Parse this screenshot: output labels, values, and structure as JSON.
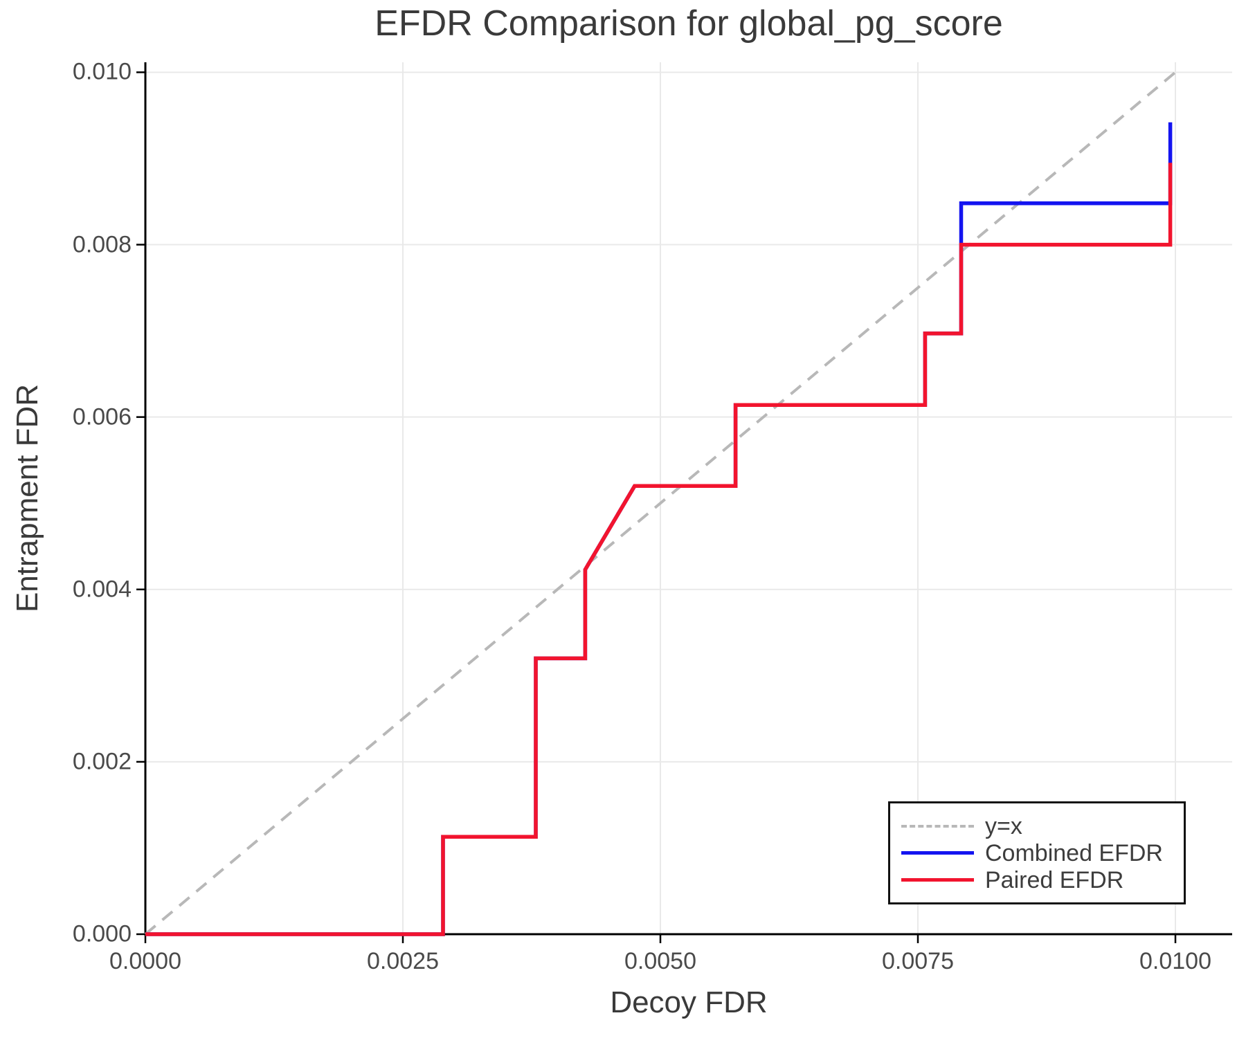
{
  "title": "EFDR Comparison for global_pg_score",
  "axes": {
    "xlabel": "Decoy FDR",
    "ylabel": "Entrapment FDR",
    "x_tick_values": [
      0,
      0.0025,
      0.005,
      0.0075,
      0.01
    ],
    "x_tick_labels": [
      "0.0000",
      "0.0025",
      "0.0050",
      "0.0075",
      "0.0100"
    ],
    "y_tick_values": [
      0,
      0.002,
      0.004,
      0.006,
      0.008,
      0.01
    ],
    "y_tick_labels": [
      "0.000",
      "0.002",
      "0.004",
      "0.006",
      "0.008",
      "0.010"
    ],
    "grid": true
  },
  "colors": {
    "combined": "#1414f0",
    "paired": "#f2142e",
    "identity": "#b8b8b8",
    "grid": "#e9e9e9",
    "spine": "#000000",
    "text": "#3a3a3a",
    "tick_text": "#4a4a4a"
  },
  "legend": {
    "items": [
      {
        "label": "y=x",
        "color": "#b8b8b8",
        "dash": true
      },
      {
        "label": "Combined EFDR",
        "color": "#1414f0",
        "dash": false
      },
      {
        "label": "Paired EFDR",
        "color": "#f2142e",
        "dash": false
      }
    ]
  },
  "chart_data": {
    "type": "line",
    "title": "EFDR Comparison for global_pg_score",
    "xlabel": "Decoy FDR",
    "ylabel": "Entrapment FDR",
    "xlim": [
      0,
      0.010551
    ],
    "ylim": [
      0,
      0.010116
    ],
    "grid": true,
    "legend_position": "lower right",
    "series": [
      {
        "name": "y=x",
        "style": "dashed",
        "color": "#b8b8b8",
        "points": [
          [
            0,
            0
          ],
          [
            0.01,
            0.01
          ]
        ]
      },
      {
        "name": "Combined EFDR",
        "style": "solid",
        "color": "#1414f0",
        "points": [
          [
            0,
            0
          ],
          [
            0.00289,
            0
          ],
          [
            0.00289,
            0.00113
          ],
          [
            0.00379,
            0.00113
          ],
          [
            0.00379,
            0.0032
          ],
          [
            0.00427,
            0.0032
          ],
          [
            0.00427,
            0.00423
          ],
          [
            0.00475,
            0.0052
          ],
          [
            0.00573,
            0.0052
          ],
          [
            0.00573,
            0.00614
          ],
          [
            0.00757,
            0.00614
          ],
          [
            0.00757,
            0.00697
          ],
          [
            0.00792,
            0.00697
          ],
          [
            0.00792,
            0.00848
          ],
          [
            0.00995,
            0.00848
          ],
          [
            0.00995,
            0.00942
          ]
        ]
      },
      {
        "name": "Paired EFDR",
        "style": "solid",
        "color": "#f2142e",
        "points": [
          [
            0,
            0
          ],
          [
            0.00289,
            0
          ],
          [
            0.00289,
            0.00113
          ],
          [
            0.00379,
            0.00113
          ],
          [
            0.00379,
            0.0032
          ],
          [
            0.00427,
            0.0032
          ],
          [
            0.00427,
            0.00423
          ],
          [
            0.00475,
            0.0052
          ],
          [
            0.00573,
            0.0052
          ],
          [
            0.00573,
            0.00614
          ],
          [
            0.00757,
            0.00614
          ],
          [
            0.00757,
            0.00697
          ],
          [
            0.00792,
            0.00697
          ],
          [
            0.00792,
            0.008
          ],
          [
            0.00995,
            0.008
          ],
          [
            0.00995,
            0.00895
          ]
        ]
      }
    ]
  }
}
